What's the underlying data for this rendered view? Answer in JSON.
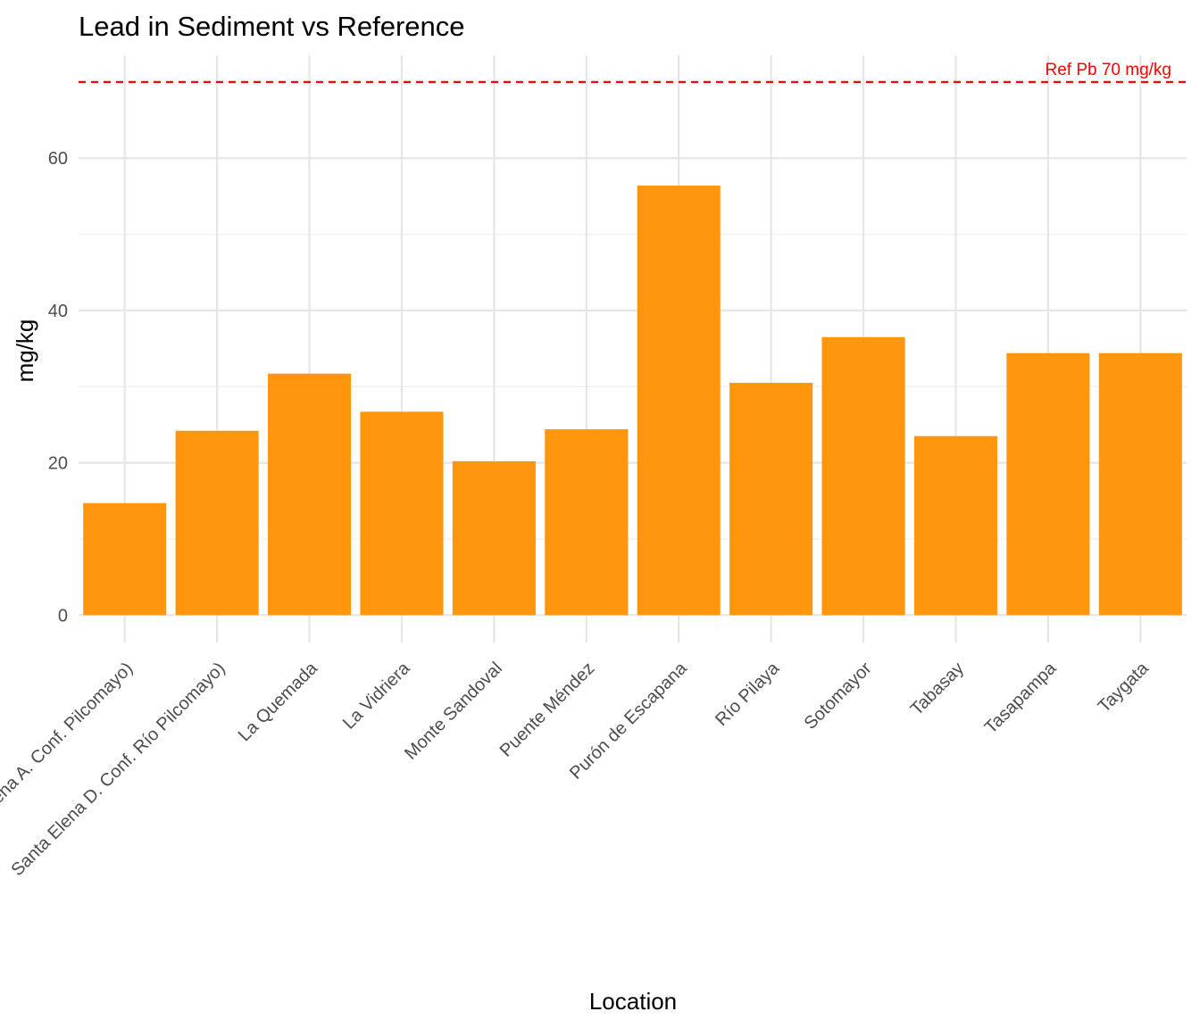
{
  "chart_data": {
    "type": "bar",
    "title": "Lead in Sediment vs Reference",
    "xlabel": "Location",
    "ylabel": "mg/kg",
    "categories": [
      "Santa Elena A. Conf. Pilcomayo)",
      "Santa Elena D. Conf. Río Pilcomayo)",
      "La Quemada",
      "La Vidriera",
      "Monte Sandoval",
      "Puente Méndez",
      "Purón de Escapana",
      "Río Pilaya",
      "Sotomayor",
      "Tabasay",
      "Tasapampa",
      "Taygata"
    ],
    "values": [
      14.7,
      24.2,
      31.7,
      26.7,
      20.2,
      24.4,
      56.4,
      30.5,
      36.5,
      23.5,
      34.4,
      34.4
    ],
    "yticks": [
      0,
      20,
      40,
      60
    ],
    "ylim": [
      -3.6,
      73.5
    ],
    "grid": true,
    "bar_color": "#FF960D",
    "reference_line": {
      "value": 70,
      "label": "Ref Pb 70 mg/kg",
      "color": "#FF0000",
      "style": "dashed"
    }
  }
}
